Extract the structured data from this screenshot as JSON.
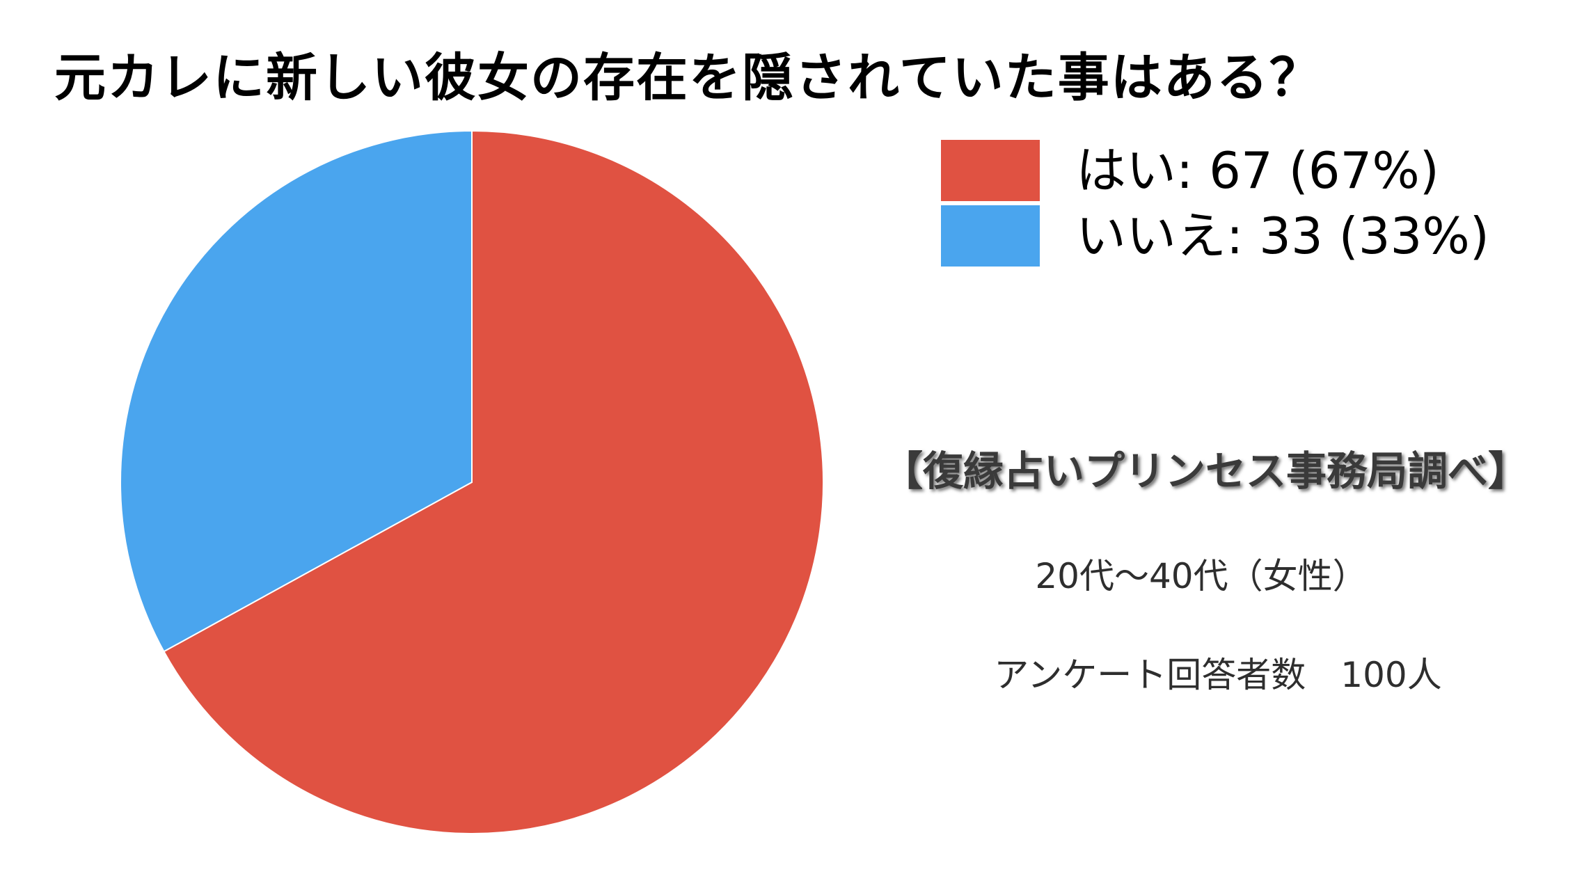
{
  "title": "元カレに新しい彼女の存在を隠されていた事はある？",
  "chart_data": {
    "type": "pie",
    "title": "元カレに新しい彼女の存在を隠されていた事はある？",
    "slices": [
      {
        "label": "はい",
        "value": 67,
        "percent": 67,
        "color": "#e05242"
      },
      {
        "label": "いいえ",
        "value": 33,
        "percent": 33,
        "color": "#4aa5ee"
      }
    ],
    "legend": {
      "placement": "top-right",
      "entries": [
        "はい: 67 (67%)",
        "いいえ: 33 (33%)"
      ]
    }
  },
  "source": "【復縁占いプリンセス事務局調べ】",
  "notes": {
    "age": "20代〜40代（女性）",
    "respondents": "アンケート回答者数　100人"
  }
}
